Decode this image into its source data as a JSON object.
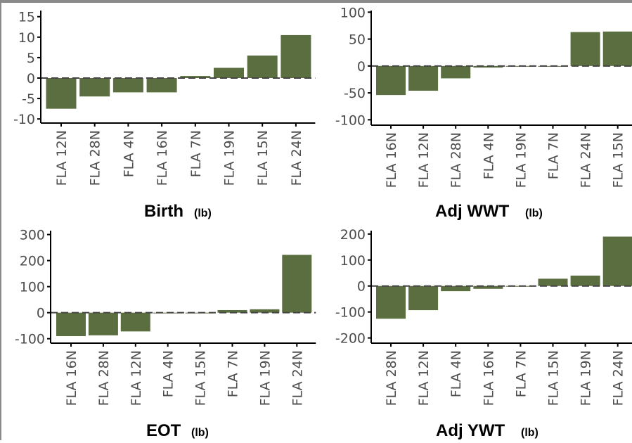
{
  "colors": {
    "bar": "#5a6e40",
    "axis": "#000000",
    "zero_line": "#444444",
    "tick_text": "#4d4d4d"
  },
  "chart_data": [
    {
      "type": "bar",
      "title": "Birth",
      "unit": "(lb)",
      "categories": [
        "FLA 12N",
        "FLA 28N",
        "FLA 4N",
        "FLA 16N",
        "FLA 7N",
        "FLA 19N",
        "FLA 15N",
        "FLA 24N"
      ],
      "values": [
        -7.5,
        -4.5,
        -3.5,
        -3.5,
        0.5,
        2.5,
        5.5,
        10.5
      ],
      "yticks": [
        -10,
        -5,
        0,
        5,
        10,
        15
      ],
      "ylim": [
        -11,
        16.5
      ],
      "zero_line": "dashed"
    },
    {
      "type": "bar",
      "title": "Adj WWT",
      "unit": "(lb)",
      "categories": [
        "FLA 16N",
        "FLA 12N",
        "FLA 28N",
        "FLA 4N",
        "FLA 19N",
        "FLA 7N",
        "FLA 24N",
        "FLA 15N"
      ],
      "values": [
        -54,
        -46,
        -23,
        -3,
        -1,
        -1,
        63,
        64
      ],
      "yticks": [
        -100,
        -50,
        0,
        50,
        100
      ],
      "ylim": [
        -110,
        103
      ],
      "zero_line": "dashed"
    },
    {
      "type": "bar",
      "title": "EOT",
      "unit": "(lb)",
      "categories": [
        "FLA 16N",
        "FLA 28N",
        "FLA 12N",
        "FLA 4N",
        "FLA 15N",
        "FLA 7N",
        "FLA 19N",
        "FLA 24N"
      ],
      "values": [
        -90,
        -87,
        -72,
        -2,
        -1,
        10,
        13,
        222
      ],
      "yticks": [
        -100,
        0,
        100,
        200,
        300
      ],
      "ylim": [
        -117,
        315
      ],
      "zero_line": "dashed"
    },
    {
      "type": "bar",
      "title": "Adj YWT",
      "unit": "(lb)",
      "categories": [
        "FLA 28N",
        "FLA 12N",
        "FLA 4N",
        "FLA 16N",
        "FLA 7N",
        "FLA 15N",
        "FLA 19N",
        "FLA 24N"
      ],
      "values": [
        -126,
        -93,
        -20,
        -11,
        -2,
        28,
        40,
        190
      ],
      "yticks": [
        -200,
        -100,
        0,
        100,
        200
      ],
      "ylim": [
        -220,
        213
      ],
      "zero_line": "dashed"
    }
  ]
}
